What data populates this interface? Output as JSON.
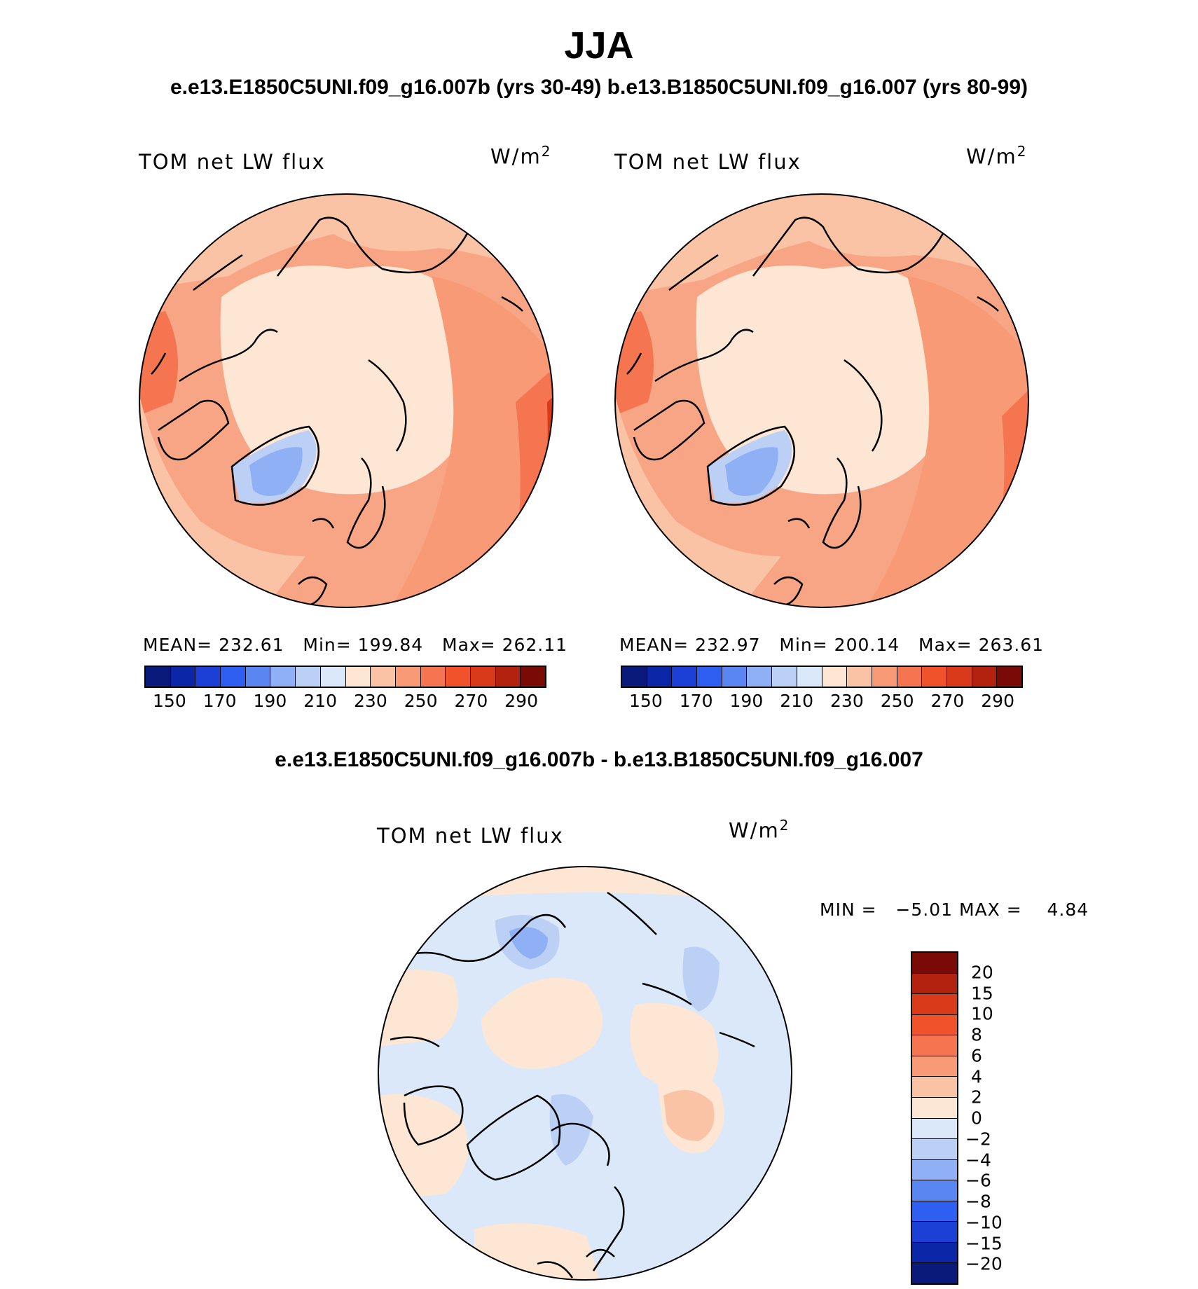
{
  "title": "JJA",
  "subtitle": "e.e13.E1850C5UNI.f09_g16.007b (yrs 30-49)  b.e13.B1850C5UNI.f09_g16.007 (yrs 80-99)",
  "diff_title": "e.e13.E1850C5UNI.f09_g16.007b - b.e13.B1850C5UNI.f09_g16.007",
  "panel_left": {
    "title": "TOM net LW flux",
    "unit": "W/m",
    "unit_sup": "2",
    "mean_label": "MEAN=",
    "mean": "232.61",
    "min_label": "Min=",
    "min": "199.84",
    "max_label": "Max=",
    "max": "262.11"
  },
  "panel_right": {
    "title": "TOM net LW flux",
    "unit": "W/m",
    "unit_sup": "2",
    "mean_label": "MEAN=",
    "mean": "232.97",
    "min_label": "Min=",
    "min": "200.14",
    "max_label": "Max=",
    "max": "263.61"
  },
  "panel_diff": {
    "title": "TOM net LW flux",
    "unit": "W/m",
    "unit_sup": "2",
    "min_label": "MIN =",
    "min": "−5.01",
    "max_label": "MAX =",
    "max": "4.84"
  },
  "abs_colorbar": {
    "ticks": [
      "150",
      "170",
      "190",
      "210",
      "230",
      "250",
      "270",
      "290"
    ],
    "colors": [
      "#0a1a7a",
      "#0b27a8",
      "#1c3fd6",
      "#2f5ff0",
      "#5a86f2",
      "#8fb0f4",
      "#bcd0f6",
      "#dbe8fa",
      "#fde6d3",
      "#fbc3a6",
      "#f89a76",
      "#f57550",
      "#f0522c",
      "#d93b1a",
      "#b3220e",
      "#7a0a05"
    ]
  },
  "diff_colorbar": {
    "ticks": [
      "20",
      "15",
      "10",
      "8",
      "6",
      "4",
      "2",
      "0",
      "−2",
      "−4",
      "−6",
      "−8",
      "−10",
      "−15",
      "−20"
    ],
    "colors": [
      "#7a0a05",
      "#b3220e",
      "#d93b1a",
      "#f0522c",
      "#f57550",
      "#f89a76",
      "#fbc3a6",
      "#fde6d3",
      "#dbe8fa",
      "#bcd0f6",
      "#8fb0f4",
      "#5a86f2",
      "#2f5ff0",
      "#1c3fd6",
      "#0b27a8",
      "#0a1a7a"
    ]
  }
}
